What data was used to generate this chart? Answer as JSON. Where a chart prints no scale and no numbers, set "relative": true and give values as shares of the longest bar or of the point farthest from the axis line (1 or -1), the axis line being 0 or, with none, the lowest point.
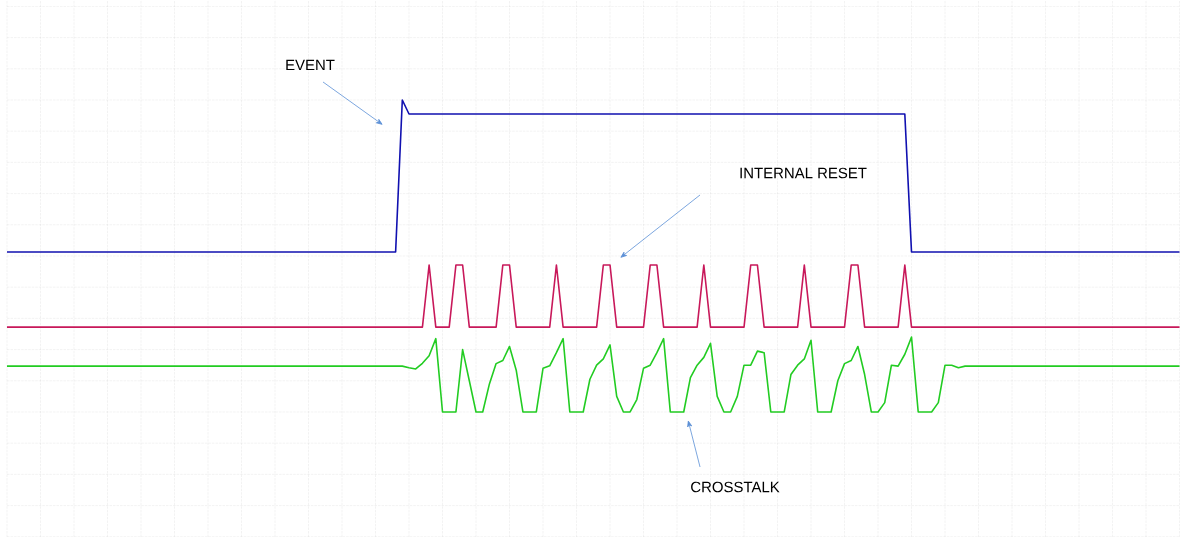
{
  "chart_data": {
    "type": "line",
    "relative": true,
    "grid": true,
    "tick_labels": false,
    "marker": "none",
    "line_style": "solid",
    "categories": [
      null,
      null,
      null,
      null,
      null,
      null,
      null,
      null,
      null,
      null,
      null,
      null,
      null,
      null,
      null,
      null,
      null,
      null,
      null,
      null,
      null,
      null,
      null,
      null,
      null,
      null,
      null,
      null,
      null,
      null,
      null,
      null,
      null,
      null,
      null,
      null,
      null,
      null,
      null,
      null,
      null,
      null,
      null,
      null,
      null,
      null,
      null,
      null,
      null,
      null,
      null,
      null,
      null,
      null,
      null,
      null,
      null,
      null,
      null,
      null,
      null,
      null,
      null,
      null,
      null,
      null,
      null,
      null,
      null,
      null,
      null,
      null,
      null,
      null,
      null,
      null,
      null,
      null,
      null,
      null,
      null,
      null,
      null,
      null,
      null,
      null,
      null,
      null,
      null,
      null,
      null,
      null,
      null,
      null,
      null,
      null,
      null,
      null,
      null,
      null,
      null,
      null,
      null,
      null,
      null,
      null,
      null,
      null,
      null,
      null,
      null,
      null,
      null,
      null,
      null,
      null,
      null,
      null,
      null,
      null,
      null,
      null,
      null,
      null,
      null,
      null,
      null,
      null,
      null,
      null,
      null,
      null,
      null,
      null,
      null,
      null,
      null,
      null,
      null,
      null,
      null,
      null,
      null,
      null,
      null,
      null,
      null,
      null,
      null,
      null,
      null,
      null,
      null,
      null,
      null,
      null,
      null,
      null,
      null,
      null,
      null,
      null,
      null,
      null,
      null,
      null,
      null,
      null,
      null,
      null,
      null,
      null,
      null,
      null,
      null,
      null
    ],
    "series": [
      {
        "color": "#1010b0",
        "values": [
          0.513,
          0.513,
          0.513,
          0.513,
          0.513,
          0.513,
          0.513,
          0.513,
          0.513,
          0.513,
          0.513,
          0.513,
          0.513,
          0.513,
          0.513,
          0.513,
          0.513,
          0.513,
          0.513,
          0.513,
          0.513,
          0.513,
          0.513,
          0.513,
          0.513,
          0.513,
          0.513,
          0.513,
          0.513,
          0.513,
          0.513,
          0.513,
          0.513,
          0.513,
          0.513,
          0.513,
          0.513,
          0.513,
          0.513,
          0.513,
          0.513,
          0.513,
          0.513,
          0.513,
          0.513,
          0.513,
          0.513,
          0.513,
          0.513,
          0.513,
          0.513,
          0.513,
          0.513,
          0.513,
          0.513,
          0.513,
          0.513,
          0.513,
          0.513,
          1.0,
          0.955,
          0.955,
          0.955,
          0.955,
          0.955,
          0.955,
          0.955,
          0.955,
          0.955,
          0.955,
          0.955,
          0.955,
          0.955,
          0.955,
          0.955,
          0.955,
          0.955,
          0.955,
          0.955,
          0.955,
          0.955,
          0.955,
          0.955,
          0.955,
          0.955,
          0.955,
          0.955,
          0.955,
          0.955,
          0.955,
          0.955,
          0.955,
          0.955,
          0.955,
          0.955,
          0.955,
          0.955,
          0.955,
          0.955,
          0.955,
          0.955,
          0.955,
          0.955,
          0.955,
          0.955,
          0.955,
          0.955,
          0.955,
          0.955,
          0.955,
          0.955,
          0.955,
          0.955,
          0.955,
          0.955,
          0.955,
          0.955,
          0.955,
          0.955,
          0.955,
          0.955,
          0.955,
          0.955,
          0.955,
          0.955,
          0.955,
          0.955,
          0.955,
          0.955,
          0.955,
          0.955,
          0.955,
          0.955,
          0.955,
          0.955,
          0.513,
          0.513,
          0.513,
          0.513,
          0.513,
          0.513,
          0.513,
          0.513,
          0.513,
          0.513,
          0.513,
          0.513,
          0.513,
          0.513,
          0.513,
          0.513,
          0.513,
          0.513,
          0.513,
          0.513,
          0.513,
          0.513,
          0.513,
          0.513,
          0.513,
          0.513,
          0.513,
          0.513,
          0.513,
          0.513,
          0.513,
          0.513,
          0.513,
          0.513,
          0.513,
          0.513,
          0.513,
          0.513,
          0.513,
          0.513,
          0.513
        ]
      },
      {
        "color": "#c8185a",
        "values": [
          0.272,
          0.272,
          0.272,
          0.272,
          0.272,
          0.272,
          0.272,
          0.272,
          0.272,
          0.272,
          0.272,
          0.272,
          0.272,
          0.272,
          0.272,
          0.272,
          0.272,
          0.272,
          0.272,
          0.272,
          0.272,
          0.272,
          0.272,
          0.272,
          0.272,
          0.272,
          0.272,
          0.272,
          0.272,
          0.272,
          0.272,
          0.272,
          0.272,
          0.272,
          0.272,
          0.272,
          0.272,
          0.272,
          0.272,
          0.272,
          0.272,
          0.272,
          0.272,
          0.272,
          0.272,
          0.272,
          0.272,
          0.272,
          0.272,
          0.272,
          0.272,
          0.272,
          0.272,
          0.272,
          0.272,
          0.272,
          0.272,
          0.272,
          0.272,
          0.272,
          0.272,
          0.272,
          0.272,
          0.471,
          0.272,
          0.272,
          0.272,
          0.471,
          0.471,
          0.272,
          0.272,
          0.272,
          0.272,
          0.272,
          0.471,
          0.471,
          0.272,
          0.272,
          0.272,
          0.272,
          0.272,
          0.272,
          0.471,
          0.272,
          0.272,
          0.272,
          0.272,
          0.272,
          0.272,
          0.471,
          0.471,
          0.272,
          0.272,
          0.272,
          0.272,
          0.272,
          0.471,
          0.471,
          0.272,
          0.272,
          0.272,
          0.272,
          0.272,
          0.272,
          0.471,
          0.272,
          0.272,
          0.272,
          0.272,
          0.272,
          0.272,
          0.471,
          0.471,
          0.272,
          0.272,
          0.272,
          0.272,
          0.272,
          0.272,
          0.471,
          0.272,
          0.272,
          0.272,
          0.272,
          0.272,
          0.272,
          0.471,
          0.471,
          0.272,
          0.272,
          0.272,
          0.272,
          0.272,
          0.272,
          0.471,
          0.272,
          0.272,
          0.272,
          0.272,
          0.272,
          0.272,
          0.272,
          0.272,
          0.272,
          0.272,
          0.272,
          0.272,
          0.272,
          0.272,
          0.272,
          0.272,
          0.272,
          0.272,
          0.272,
          0.272,
          0.272,
          0.272,
          0.272,
          0.272,
          0.272,
          0.272,
          0.272,
          0.272,
          0.272,
          0.272,
          0.272,
          0.272,
          0.272,
          0.272,
          0.272,
          0.272,
          0.272,
          0.272,
          0.272,
          0.272,
          0.272
        ]
      },
      {
        "color": "#22cc22",
        "values": [
          0.147,
          0.147,
          0.147,
          0.147,
          0.147,
          0.147,
          0.147,
          0.147,
          0.147,
          0.147,
          0.147,
          0.147,
          0.147,
          0.147,
          0.147,
          0.147,
          0.147,
          0.147,
          0.147,
          0.147,
          0.147,
          0.147,
          0.147,
          0.147,
          0.147,
          0.147,
          0.147,
          0.147,
          0.147,
          0.147,
          0.147,
          0.147,
          0.147,
          0.147,
          0.147,
          0.147,
          0.147,
          0.147,
          0.147,
          0.147,
          0.147,
          0.147,
          0.147,
          0.147,
          0.147,
          0.147,
          0.147,
          0.147,
          0.147,
          0.147,
          0.147,
          0.147,
          0.147,
          0.147,
          0.147,
          0.147,
          0.147,
          0.147,
          0.147,
          0.147,
          0.142,
          0.138,
          0.156,
          0.18,
          0.235,
          0,
          0,
          0,
          0.2,
          0.1,
          0,
          0,
          0.09,
          0.155,
          0.165,
          0.21,
          0.134,
          0,
          0,
          0,
          0.14,
          0.148,
          0.19,
          0.235,
          0,
          0,
          0,
          0.105,
          0.15,
          0.17,
          0.215,
          0.05,
          0,
          0,
          0.04,
          0.14,
          0.15,
          0.19,
          0.235,
          0,
          0,
          0,
          0.11,
          0.15,
          0.175,
          0.22,
          0.05,
          0,
          0,
          0.05,
          0.15,
          0.15,
          0.195,
          0.19,
          0,
          0,
          0,
          0.12,
          0.15,
          0.17,
          0.23,
          0,
          0,
          0,
          0.1,
          0.155,
          0.165,
          0.21,
          0.12,
          0,
          0,
          0.03,
          0.15,
          0.147,
          0.185,
          0.24,
          0,
          0,
          0,
          0.03,
          0.15,
          0.15,
          0.142,
          0.147,
          0.147,
          0.147,
          0.147,
          0.147,
          0.147,
          0.147,
          0.147,
          0.147,
          0.147,
          0.147,
          0.147,
          0.147,
          0.147,
          0.147,
          0.147,
          0.147,
          0.147,
          0.147,
          0.147,
          0.147,
          0.147,
          0.147,
          0.147,
          0.147,
          0.147,
          0.147,
          0.147,
          0.147,
          0.147,
          0.147,
          0.147,
          0.147
        ]
      }
    ],
    "annotations": [
      "EVENT",
      "INTERNAL RESET",
      "CROSSTALK"
    ]
  }
}
